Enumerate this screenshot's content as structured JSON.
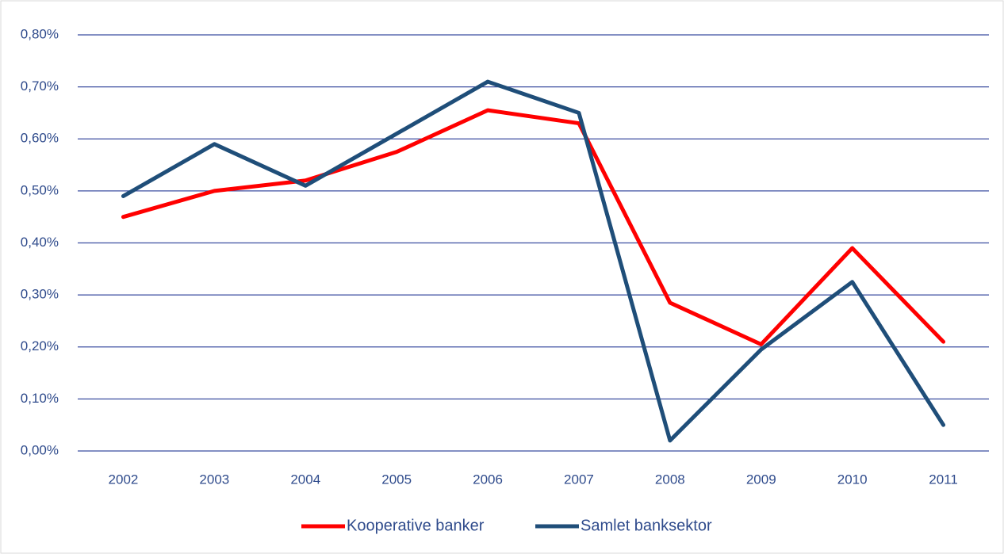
{
  "chart_data": {
    "type": "line",
    "categories": [
      "2002",
      "2003",
      "2004",
      "2005",
      "2006",
      "2007",
      "2008",
      "2009",
      "2010",
      "2011"
    ],
    "series": [
      {
        "name": "Kooperative banker",
        "color": "#ff0000",
        "values": [
          0.45,
          0.5,
          0.52,
          0.575,
          0.655,
          0.63,
          0.285,
          0.205,
          0.39,
          0.21
        ]
      },
      {
        "name": "Samlet banksektor",
        "color": "#1f4e79",
        "values": [
          0.49,
          0.59,
          0.51,
          0.61,
          0.71,
          0.65,
          0.02,
          0.195,
          0.325,
          0.05
        ]
      }
    ],
    "ylim": [
      0,
      0.8
    ],
    "yticks": [
      {
        "value": 0,
        "label": "0,00%"
      },
      {
        "value": 0.1,
        "label": "0,10%"
      },
      {
        "value": 0.2,
        "label": "0,20%"
      },
      {
        "value": 0.3,
        "label": "0,30%"
      },
      {
        "value": 0.4,
        "label": "0,40%"
      },
      {
        "value": 0.5,
        "label": "0,50%"
      },
      {
        "value": 0.6,
        "label": "0,60%"
      },
      {
        "value": 0.7,
        "label": "0,70%"
      },
      {
        "value": 0.8,
        "label": "0,80%"
      }
    ],
    "grid": true,
    "legend": "bottom"
  }
}
